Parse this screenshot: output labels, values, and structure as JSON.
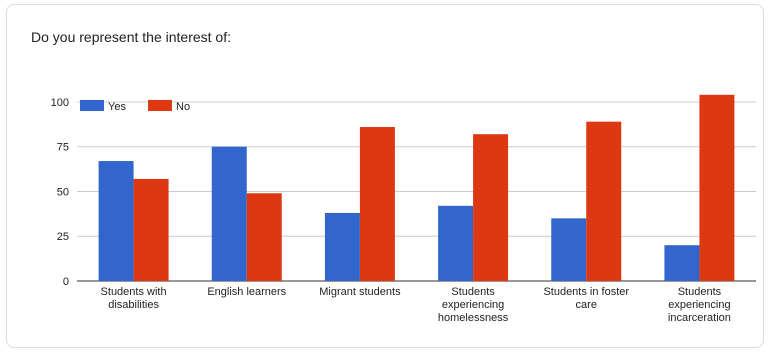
{
  "question": "Do you represent the interest of:",
  "chart_data": {
    "type": "bar",
    "categories": [
      [
        "Students with",
        "disabilities"
      ],
      [
        "English learners"
      ],
      [
        "Migrant students"
      ],
      [
        "Students",
        "experiencing",
        "homelessness"
      ],
      [
        "Students in foster",
        "care"
      ],
      [
        "Students",
        "experiencing",
        "incarceration"
      ]
    ],
    "series": [
      {
        "name": "Yes",
        "color": "#3366cc",
        "values": [
          67,
          75,
          38,
          42,
          35,
          20
        ]
      },
      {
        "name": "No",
        "color": "#dc3912",
        "values": [
          57,
          49,
          86,
          82,
          89,
          104
        ]
      }
    ],
    "yticks": [
      0,
      25,
      50,
      75,
      100
    ],
    "ylim": [
      0,
      105
    ],
    "grid": true,
    "legend": "top-left"
  }
}
